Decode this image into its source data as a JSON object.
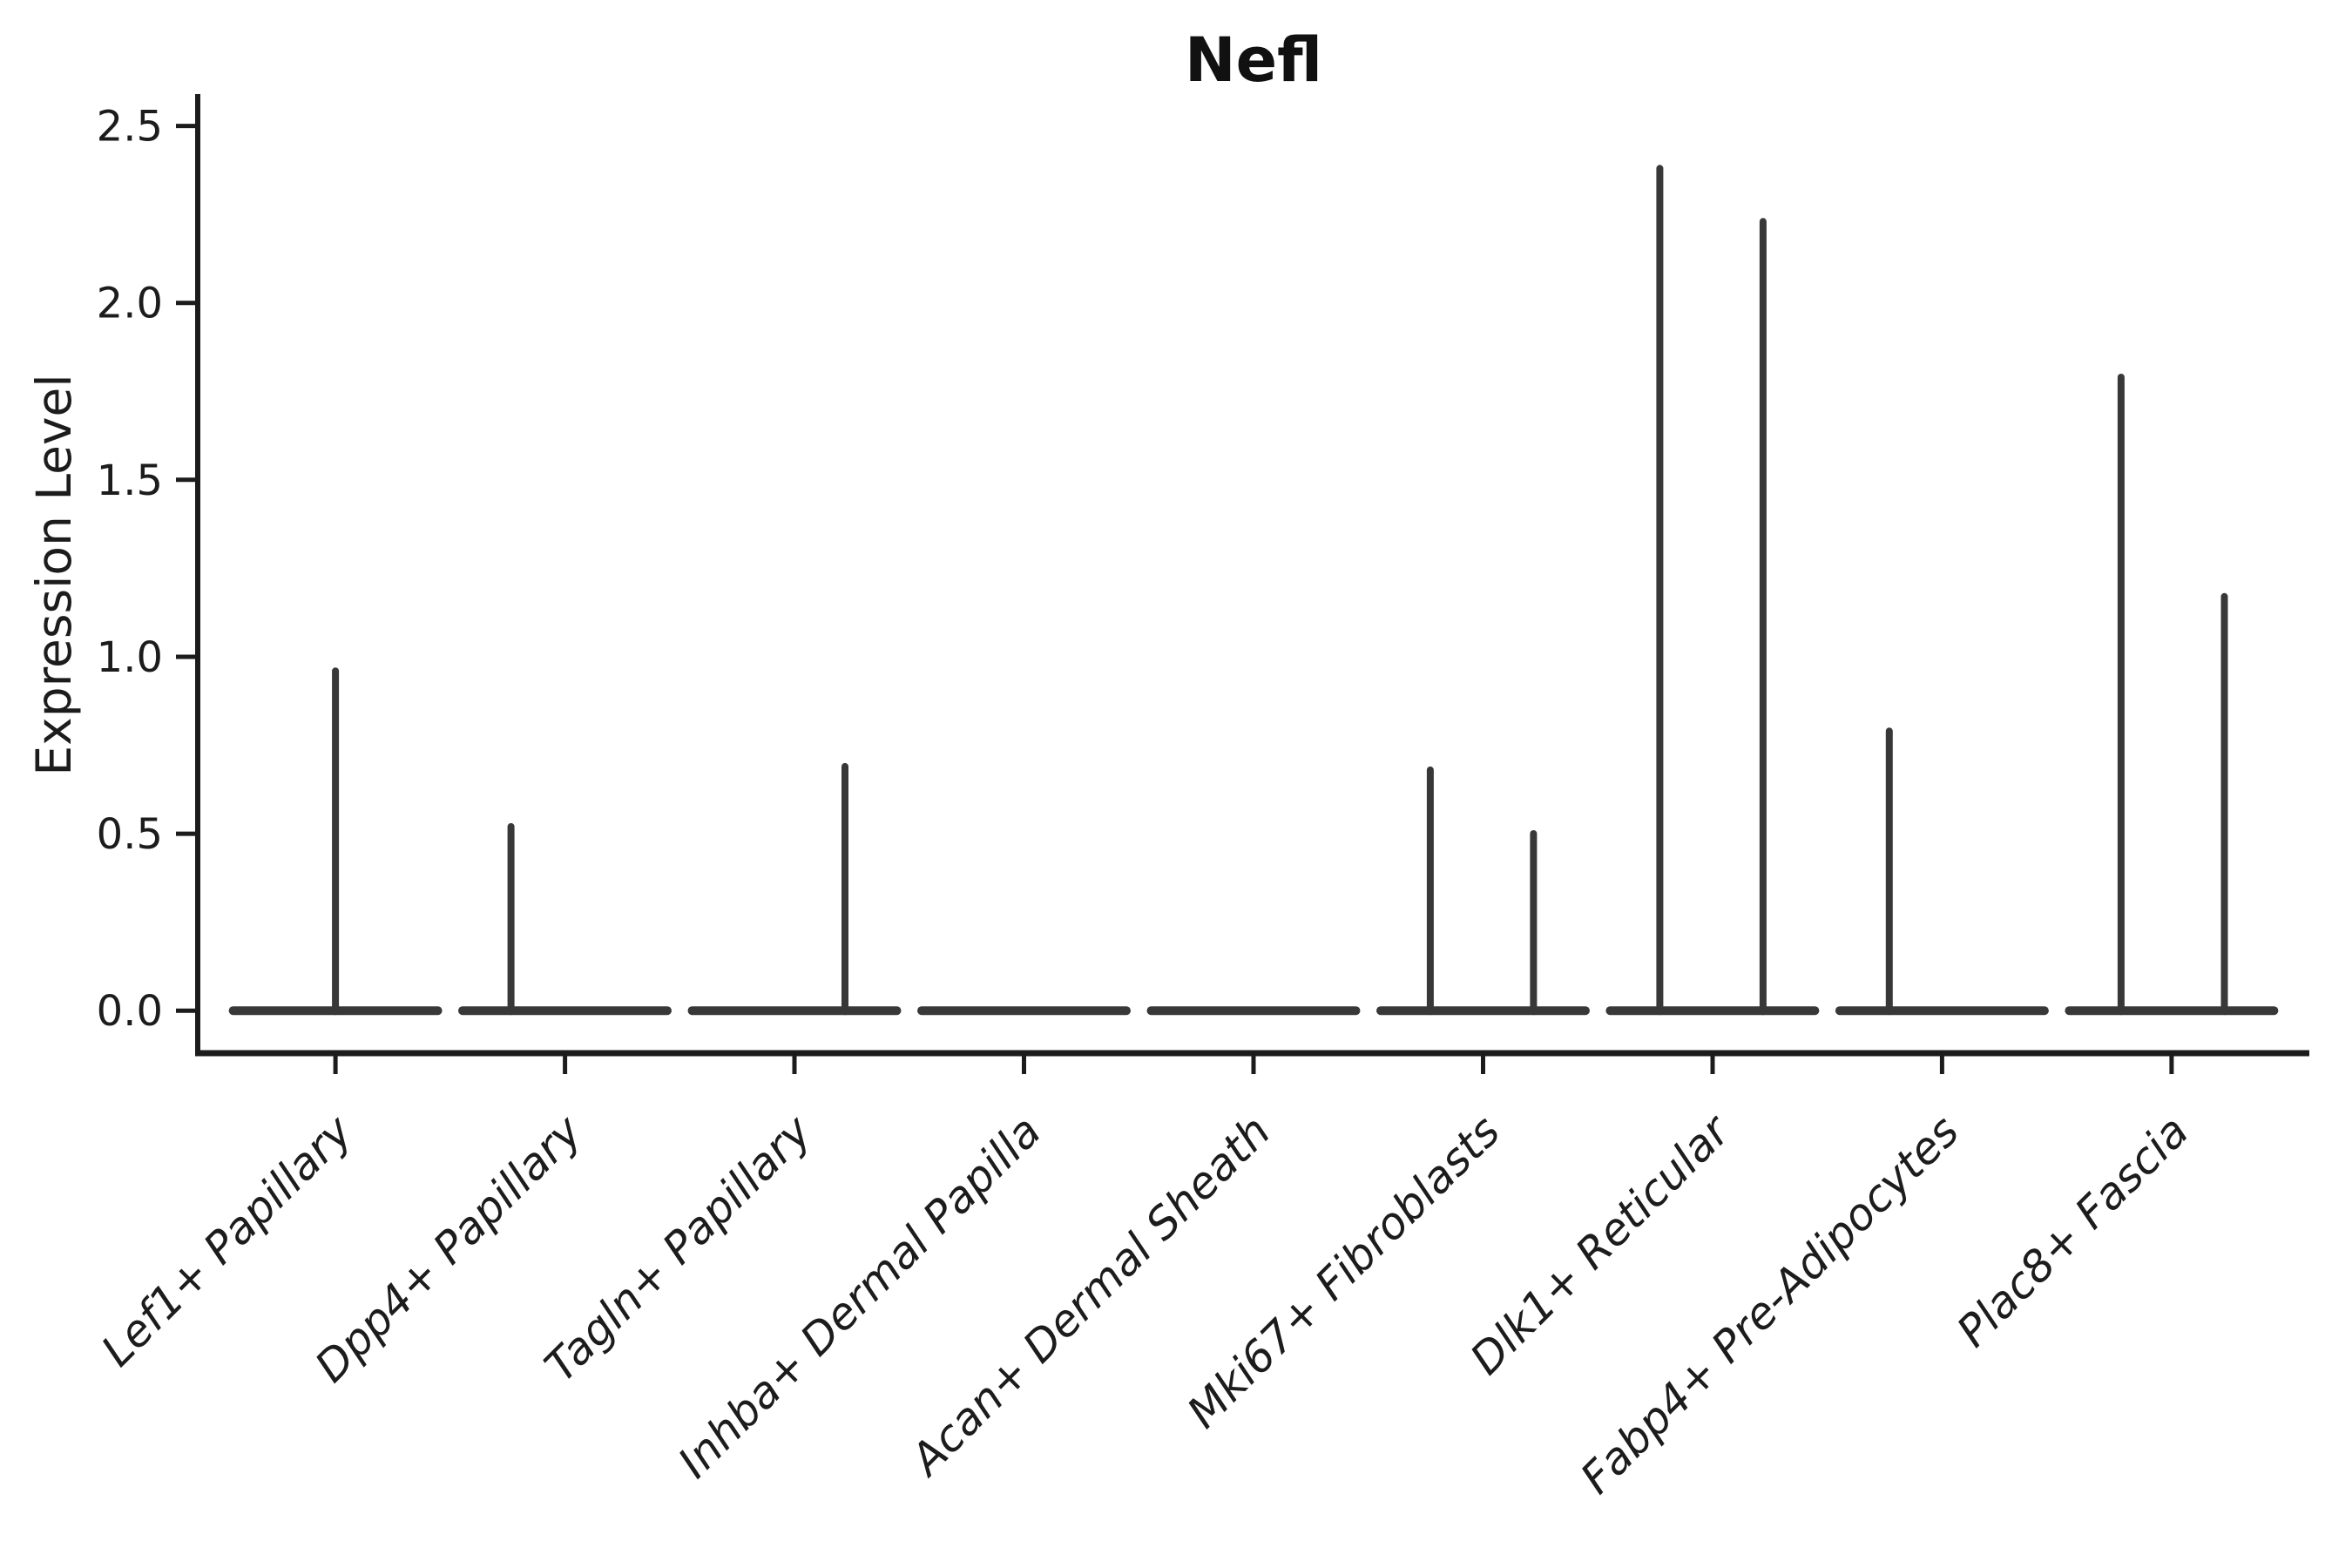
{
  "figure": {
    "title": "Nefl",
    "ylabel": "Expression Level"
  },
  "chart_data": {
    "type": "violin",
    "title": "Nefl",
    "xlabel": "",
    "ylabel": "Expression Level",
    "grid": false,
    "legend": null,
    "categories": [
      "Lef1+ Papillary",
      "Dpp4+ Papillary",
      "Tagln+ Papillary",
      "Inhba+ Dermal Papilla",
      "Acan+ Dermal Sheath",
      "Mki67+ Fibroblasts",
      "Dlk1+ Reticular",
      "Fabp4+ Pre-Adipocytes",
      "Plac8+ Fascia"
    ],
    "ytick_labels": [
      "0.0",
      "0.5",
      "1.0",
      "1.5",
      "2.0",
      "2.5"
    ],
    "ylim": [
      -0.12,
      2.59
    ],
    "xlim": [
      -0.6,
      8.6
    ],
    "baseline": 0.0,
    "violin_body_halfwidth": 0.465,
    "violins": [
      {
        "category": "Lef1+ Papillary",
        "body_at": 0.0,
        "spikes": [
          {
            "offset": 0.0,
            "max": 0.97
          }
        ]
      },
      {
        "category": "Dpp4+ Papillary",
        "body_at": 0.0,
        "spikes": [
          {
            "offset": -0.235,
            "max": 0.53
          }
        ]
      },
      {
        "category": "Tagln+ Papillary",
        "body_at": 0.0,
        "spikes": [
          {
            "offset": 0.22,
            "max": 0.7
          }
        ]
      },
      {
        "category": "Inhba+ Dermal Papilla",
        "body_at": 0.0,
        "spikes": []
      },
      {
        "category": "Acan+ Dermal Sheath",
        "body_at": 0.0,
        "spikes": []
      },
      {
        "category": "Mki67+ Fibroblasts",
        "body_at": 0.0,
        "spikes": [
          {
            "offset": -0.23,
            "max": 0.69
          },
          {
            "offset": 0.22,
            "max": 0.51
          }
        ]
      },
      {
        "category": "Dlk1+ Reticular",
        "body_at": 0.0,
        "spikes": [
          {
            "offset": -0.23,
            "max": 2.39
          },
          {
            "offset": 0.22,
            "max": 2.24
          }
        ]
      },
      {
        "category": "Fabp4+ Pre-Adipocytes",
        "body_at": 0.0,
        "spikes": [
          {
            "offset": -0.23,
            "max": 0.8
          }
        ]
      },
      {
        "category": "Plac8+ Fascia",
        "body_at": 0.0,
        "spikes": [
          {
            "offset": -0.22,
            "max": 1.8
          },
          {
            "offset": 0.23,
            "max": 1.18
          }
        ]
      }
    ],
    "colors": {
      "violin": "#383838",
      "axis": "#1c1c1c",
      "text": "#1c1c1c"
    }
  }
}
